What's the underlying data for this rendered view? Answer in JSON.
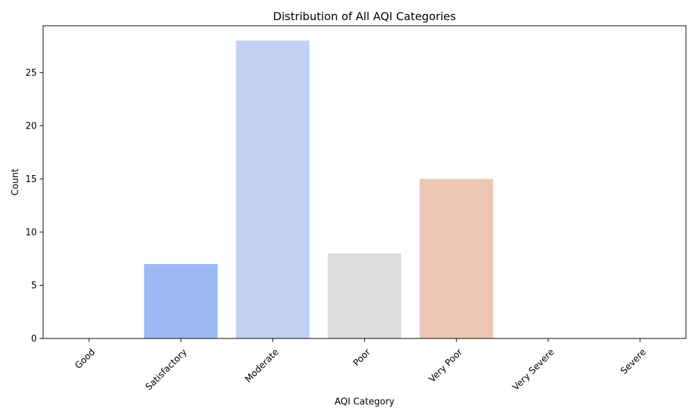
{
  "chart_data": {
    "type": "bar",
    "title": "Distribution of All AQI Categories",
    "xlabel": "AQI Category",
    "ylabel": "Count",
    "categories": [
      "Good",
      "Satisfactory",
      "Moderate",
      "Poor",
      "Very Poor",
      "Very Severe",
      "Severe"
    ],
    "values": [
      0,
      7,
      28,
      8,
      15,
      0,
      0
    ],
    "colors": [
      "#3b4cc0",
      "#9db9f3",
      "#c1d1f1",
      "#dcdcdc",
      "#ebc6b4",
      "#e57e62",
      "#b40426"
    ],
    "ylim": [
      0,
      29.4
    ],
    "yticks": [
      0,
      5,
      10,
      15,
      20,
      25
    ],
    "grid": false,
    "legend": "none"
  }
}
